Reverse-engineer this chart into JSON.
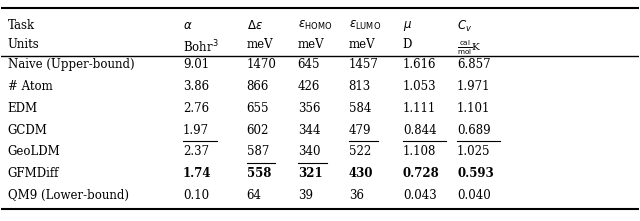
{
  "col_headers_line1": [
    "Task",
    "α",
    "Δε",
    "ε_HOMO",
    "ε_LUMO",
    "μ",
    "C_v"
  ],
  "col_headers_line2": [
    "Units",
    "Bohr³",
    "meV",
    "meV",
    "meV",
    "D",
    "cal_mol_K"
  ],
  "rows": [
    {
      "name": "Naive (Upper-bound)",
      "values": [
        "9.01",
        "1470",
        "645",
        "1457",
        "1.616",
        "6.857"
      ],
      "bold": [
        false,
        false,
        false,
        false,
        false,
        false
      ],
      "underline": [
        false,
        false,
        false,
        false,
        false,
        false
      ]
    },
    {
      "name": "# Atom",
      "values": [
        "3.86",
        "866",
        "426",
        "813",
        "1.053",
        "1.971"
      ],
      "bold": [
        false,
        false,
        false,
        false,
        false,
        false
      ],
      "underline": [
        false,
        false,
        false,
        false,
        false,
        false
      ]
    },
    {
      "name": "EDM",
      "values": [
        "2.76",
        "655",
        "356",
        "584",
        "1.111",
        "1.101"
      ],
      "bold": [
        false,
        false,
        false,
        false,
        false,
        false
      ],
      "underline": [
        false,
        false,
        false,
        false,
        false,
        false
      ]
    },
    {
      "name": "GCDM",
      "values": [
        "1.97",
        "602",
        "344",
        "479",
        "0.844",
        "0.689"
      ],
      "bold": [
        false,
        false,
        false,
        false,
        false,
        false
      ],
      "underline": [
        true,
        false,
        false,
        true,
        true,
        true
      ]
    },
    {
      "name": "GeoLDM",
      "values": [
        "2.37",
        "587",
        "340",
        "522",
        "1.108",
        "1.025"
      ],
      "bold": [
        false,
        false,
        false,
        false,
        false,
        false
      ],
      "underline": [
        false,
        true,
        true,
        false,
        false,
        false
      ]
    },
    {
      "name": "GFMDiff",
      "values": [
        "1.74",
        "558",
        "321",
        "430",
        "0.728",
        "0.593"
      ],
      "bold": [
        true,
        true,
        true,
        true,
        true,
        true
      ],
      "underline": [
        false,
        false,
        false,
        false,
        false,
        false
      ]
    },
    {
      "name": "QM9 (Lower-bound)",
      "values": [
        "0.10",
        "64",
        "39",
        "36",
        "0.043",
        "0.040"
      ],
      "bold": [
        false,
        false,
        false,
        false,
        false,
        false
      ],
      "underline": [
        false,
        false,
        false,
        false,
        false,
        false
      ]
    }
  ],
  "figsize": [
    6.4,
    2.21
  ],
  "dpi": 100
}
